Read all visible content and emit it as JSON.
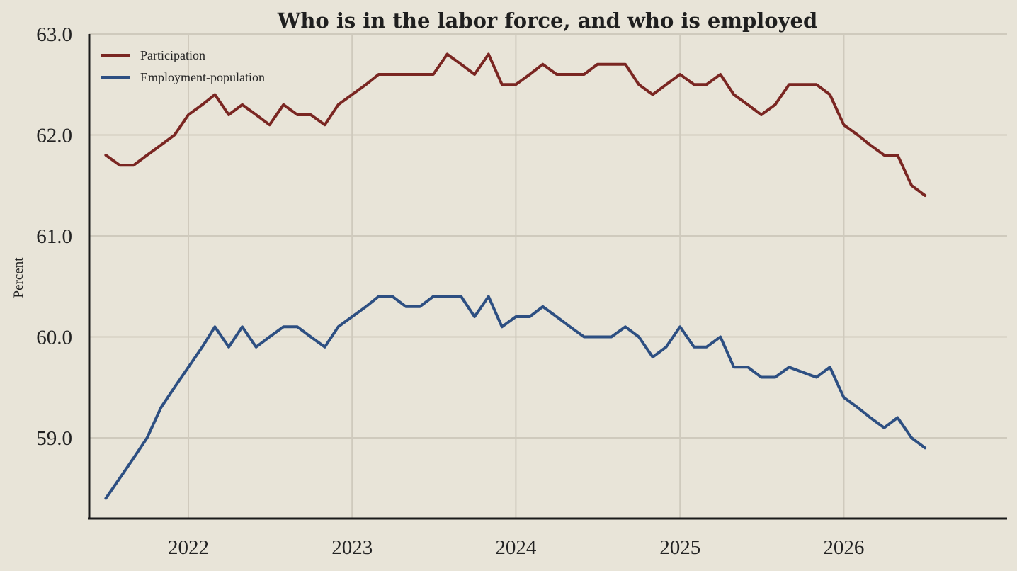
{
  "chart_data": {
    "type": "line",
    "title": "Who is in the labor force, and who is employed",
    "ylabel": "Percent",
    "xlabel": "",
    "ylim": [
      58.2,
      63.0
    ],
    "xlim": [
      "2021-05-25",
      "2026-12-31"
    ],
    "y_ticks": [
      "59.0",
      "60.0",
      "61.0",
      "62.0",
      "63.0"
    ],
    "x_ticks": [
      "2022",
      "2023",
      "2024",
      "2025",
      "2026"
    ],
    "grid": true,
    "legend_position": "top-left",
    "x": [
      "2021-07",
      "2021-08",
      "2021-09",
      "2021-10",
      "2021-11",
      "2021-12",
      "2022-01",
      "2022-02",
      "2022-03",
      "2022-04",
      "2022-05",
      "2022-06",
      "2022-07",
      "2022-08",
      "2022-09",
      "2022-10",
      "2022-11",
      "2022-12",
      "2023-01",
      "2023-02",
      "2023-03",
      "2023-04",
      "2023-05",
      "2023-06",
      "2023-07",
      "2023-08",
      "2023-09",
      "2023-10",
      "2023-11",
      "2023-12",
      "2024-01",
      "2024-02",
      "2024-03",
      "2024-04",
      "2024-05",
      "2024-06",
      "2024-07",
      "2024-08",
      "2024-09",
      "2024-10",
      "2024-11",
      "2024-12",
      "2025-01",
      "2025-02",
      "2025-03",
      "2025-04",
      "2025-05",
      "2025-06",
      "2025-07",
      "2025-08",
      "2025-09",
      "2025-10",
      "2025-11",
      "2025-12",
      "2026-01",
      "2026-02",
      "2026-03",
      "2026-04",
      "2026-05",
      "2026-06",
      "2026-07"
    ],
    "series": [
      {
        "name": "Participation",
        "color": "#7a2622",
        "values": [
          61.8,
          61.7,
          61.7,
          61.8,
          61.9,
          62.0,
          62.2,
          62.3,
          62.4,
          62.2,
          62.3,
          62.2,
          62.1,
          62.3,
          62.2,
          62.2,
          62.1,
          62.3,
          62.4,
          62.5,
          62.6,
          62.6,
          62.6,
          62.6,
          62.6,
          62.8,
          62.7,
          62.6,
          62.8,
          62.5,
          62.5,
          62.6,
          62.7,
          62.6,
          62.6,
          62.6,
          62.7,
          62.7,
          62.7,
          62.5,
          62.4,
          62.5,
          62.6,
          62.5,
          62.5,
          62.6,
          62.4,
          62.3,
          62.2,
          62.3,
          62.5,
          62.5,
          62.5,
          62.4,
          62.1,
          62.0,
          61.9,
          61.8,
          61.8,
          61.5,
          61.4
        ]
      },
      {
        "name": "Employment-population",
        "color": "#2d4f82",
        "values": [
          58.4,
          58.6,
          58.8,
          59.0,
          59.3,
          59.5,
          59.7,
          59.9,
          60.1,
          59.9,
          60.1,
          59.9,
          60.0,
          60.1,
          60.1,
          60.0,
          59.9,
          60.1,
          60.2,
          60.3,
          60.4,
          60.4,
          60.3,
          60.3,
          60.4,
          60.4,
          60.4,
          60.2,
          60.4,
          60.1,
          60.2,
          60.2,
          60.3,
          60.2,
          60.1,
          60.0,
          60.0,
          60.0,
          60.1,
          60.0,
          59.8,
          59.9,
          60.1,
          59.9,
          59.9,
          60.0,
          59.7,
          59.7,
          59.6,
          59.6,
          59.7,
          59.65,
          59.6,
          59.7,
          59.4,
          59.3,
          59.2,
          59.1,
          59.2,
          59.0,
          58.9
        ]
      }
    ]
  },
  "colors": {
    "background": "#e8e4d8",
    "grid": "#cfcabd",
    "axis": "#1a1a1a"
  }
}
